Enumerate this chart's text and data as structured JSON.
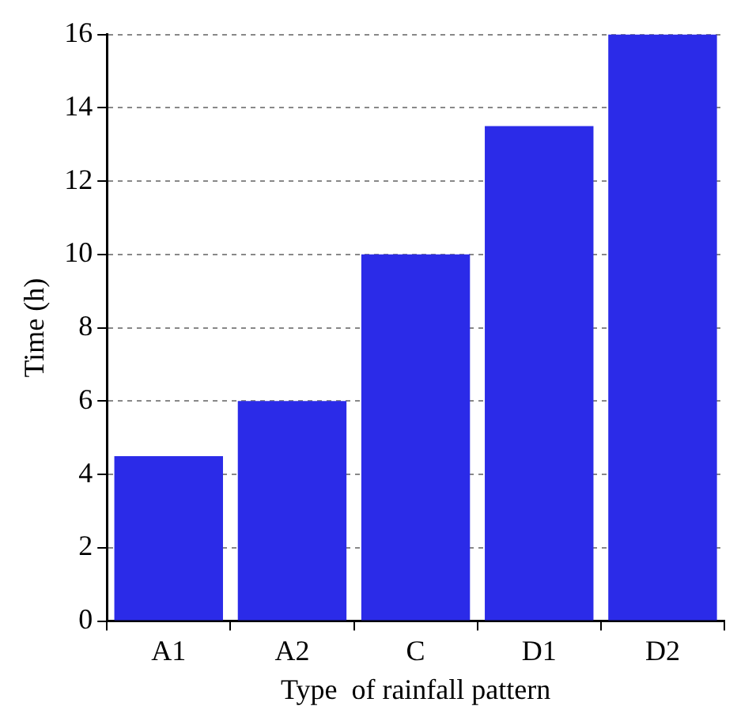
{
  "chart_data": {
    "type": "bar",
    "xlabel": "Type  of rainfall pattern",
    "ylabel": "Time (h)",
    "categories": [
      "A1",
      "A2",
      "C",
      "D1",
      "D2"
    ],
    "values": [
      4.5,
      6,
      10,
      13.5,
      16
    ],
    "color": "#2b2be8",
    "ylim": [
      0,
      16
    ],
    "yticks": [
      0,
      2,
      4,
      6,
      8,
      10,
      12,
      14,
      16
    ],
    "grid": "y",
    "legend": false
  }
}
